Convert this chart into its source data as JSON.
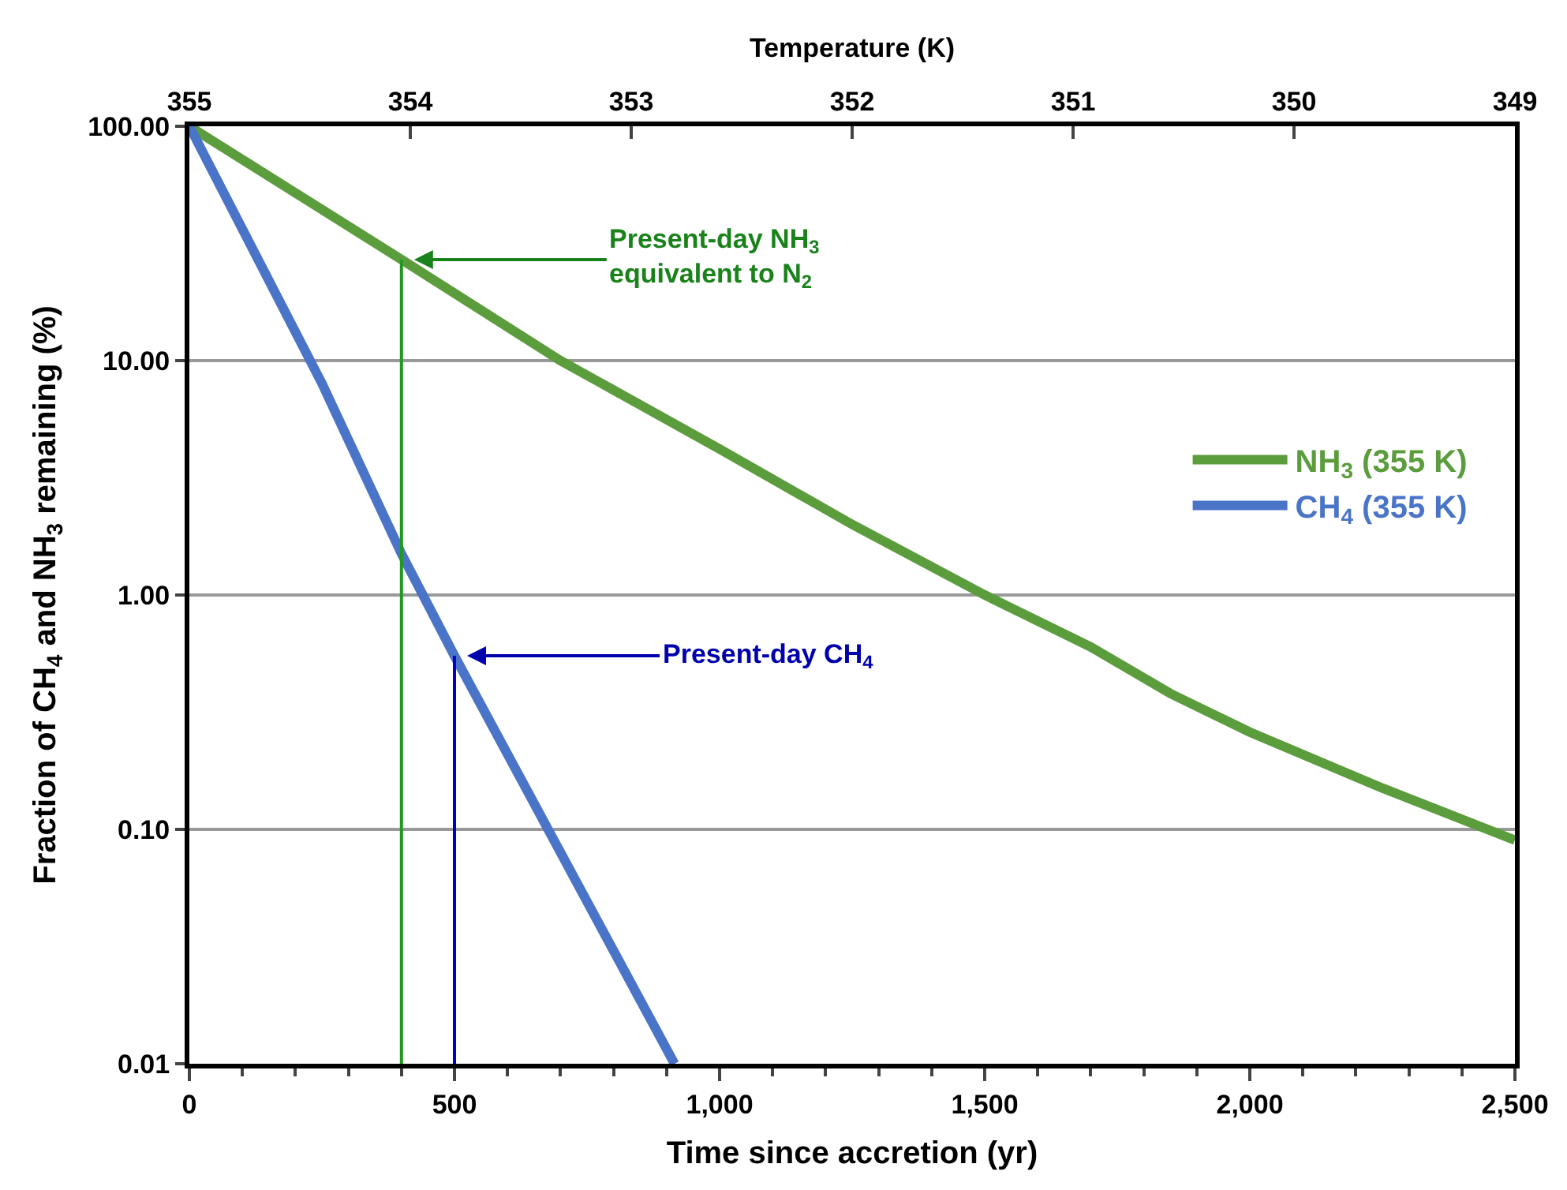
{
  "chart_data": {
    "type": "line",
    "xlabel": "Time since accretion (yr)",
    "ylabel": "Fraction of CH$_{4}$ and NH$_{3}$ remaining (%)",
    "x2label": "Temperature (K)",
    "series": [
      {
        "name": "NH$_{3}$ (355 K)",
        "color": "#5b9c3c",
        "x": [
          0,
          400,
          700,
          1000,
          1250,
          1500,
          1700,
          1850,
          2000,
          2250,
          2500
        ],
        "values": [
          100,
          27,
          10,
          4.2,
          2.0,
          1.0,
          0.6,
          0.38,
          0.26,
          0.15,
          0.09
        ]
      },
      {
        "name": "CH$_{4}$ (355 K)",
        "color": "#4a74c8",
        "x": [
          0,
          250,
          400,
          500,
          915
        ],
        "values": [
          100,
          8,
          1.5,
          0.55,
          0.01
        ]
      },
      {
        "color": "#1f9a1f",
        "x": [
          400,
          400
        ],
        "values": [
          0.01,
          27
        ]
      },
      {
        "color": "#0000cc",
        "x": [
          500,
          500
        ],
        "values": [
          0.01,
          0.55
        ]
      }
    ],
    "annotations": [
      {
        "text": "Present-day NH$_{3}$\nequivalent to N$_{2}$",
        "x": 400,
        "y": 27
      },
      {
        "text": "Present-day CH$_{4}$",
        "x": 500,
        "y": 0.55
      }
    ],
    "xlim": [
      0,
      2500
    ],
    "xticks": [
      0,
      {
        "value": 500,
        "label": "500"
      },
      {
        "value": 1000,
        "label": "1,000"
      },
      {
        "value": 1500,
        "label": "1,500"
      },
      {
        "value": 2000,
        "label": "2,000"
      },
      {
        "value": 2500,
        "label": "2,500"
      }
    ],
    "x2lim": [
      355,
      349
    ],
    "x2ticks": [
      355,
      354,
      353,
      352,
      351,
      350,
      349
    ],
    "ylim": [
      0.01,
      100
    ],
    "yticks": [
      {
        "value": 0.01,
        "label": "0.01"
      },
      {
        "value": 0.1,
        "label": "0.10"
      },
      {
        "value": 1,
        "label": "1.00"
      },
      {
        "value": 10,
        "label": "10.00"
      },
      {
        "value": 100,
        "label": "100.00"
      }
    ],
    "log": "y",
    "grid": "y",
    "legend": "right",
    "marker": "none",
    "line_style": "solid"
  }
}
